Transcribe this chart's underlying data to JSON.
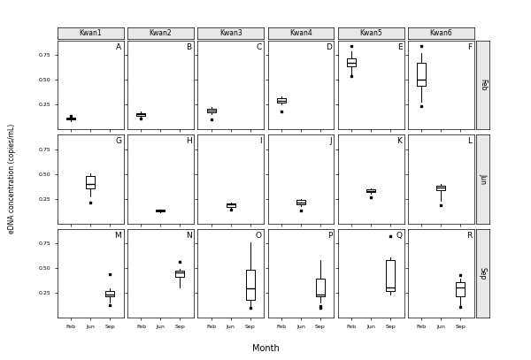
{
  "kwans": [
    "Kwan1",
    "Kwan2",
    "Kwan3",
    "Kwan4",
    "Kwan5",
    "Kwan6"
  ],
  "months": [
    "Feb",
    "Jun",
    "Sep"
  ],
  "row_months": [
    "Feb",
    "Jun",
    "Sep"
  ],
  "panel_labels": [
    [
      "A",
      "B",
      "C",
      "D",
      "E",
      "F"
    ],
    [
      "G",
      "H",
      "I",
      "J",
      "K",
      "L"
    ],
    [
      "M",
      "N",
      "O",
      "P",
      "Q",
      "R"
    ]
  ],
  "ylabel": "eDNA concentration (copies/mL)",
  "xlabel": "Month",
  "ylim": [
    0.0,
    0.9
  ],
  "yticks": [
    0.25,
    0.5,
    0.75
  ],
  "ytick_labels": [
    "0.25",
    "0.50",
    "0.75"
  ],
  "background_color": "#ffffff",
  "strip_bg": "#e8e8e8",
  "box_data": {
    "Feb": {
      "Kwan1": {
        "med": 0.105,
        "q1": 0.095,
        "q3": 0.115,
        "whislo": 0.085,
        "whishi": 0.125,
        "fliers": [
          0.135
        ]
      },
      "Kwan2": {
        "med": 0.15,
        "q1": 0.135,
        "q3": 0.16,
        "whislo": 0.118,
        "whishi": 0.175,
        "fliers": [
          0.108
        ]
      },
      "Kwan3": {
        "med": 0.185,
        "q1": 0.17,
        "q3": 0.205,
        "whislo": 0.155,
        "whishi": 0.22,
        "fliers": [
          0.098
        ]
      },
      "Kwan4": {
        "med": 0.29,
        "q1": 0.268,
        "q3": 0.315,
        "whislo": 0.255,
        "whishi": 0.33,
        "fliers": [
          0.175
        ]
      },
      "Kwan5": {
        "med": 0.67,
        "q1": 0.635,
        "q3": 0.72,
        "whislo": 0.56,
        "whishi": 0.785,
        "fliers": [
          0.84,
          0.54
        ]
      },
      "Kwan6": {
        "med": 0.505,
        "q1": 0.44,
        "q3": 0.67,
        "whislo": 0.275,
        "whishi": 0.775,
        "fliers": [
          0.84,
          0.235
        ]
      }
    },
    "Jun": {
      "Kwan1": {
        "med": 0.4,
        "q1": 0.35,
        "q3": 0.48,
        "whislo": 0.27,
        "whishi": 0.505,
        "fliers": [
          0.215
        ]
      },
      "Kwan2": {
        "med": 0.128,
        "q1": 0.12,
        "q3": 0.135,
        "whislo": 0.115,
        "whishi": 0.14,
        "fliers": [
          0.128
        ]
      },
      "Kwan3": {
        "med": 0.19,
        "q1": 0.168,
        "q3": 0.205,
        "whislo": 0.155,
        "whishi": 0.215,
        "fliers": [
          0.14
        ]
      },
      "Kwan4": {
        "med": 0.215,
        "q1": 0.195,
        "q3": 0.235,
        "whislo": 0.175,
        "whishi": 0.248,
        "fliers": [
          0.13
        ]
      },
      "Kwan5": {
        "med": 0.33,
        "q1": 0.315,
        "q3": 0.345,
        "whislo": 0.298,
        "whishi": 0.358,
        "fliers": [
          0.262
        ]
      },
      "Kwan6": {
        "med": 0.362,
        "q1": 0.335,
        "q3": 0.385,
        "whislo": 0.228,
        "whishi": 0.398,
        "fliers": [
          0.188
        ]
      }
    },
    "Sep": {
      "Kwan1": {
        "med": 0.232,
        "q1": 0.215,
        "q3": 0.272,
        "whislo": 0.155,
        "whishi": 0.295,
        "fliers": [
          0.435,
          0.128
        ]
      },
      "Kwan2": {
        "med": 0.455,
        "q1": 0.415,
        "q3": 0.475,
        "whislo": 0.302,
        "whishi": 0.496,
        "fliers": [
          0.562
        ]
      },
      "Kwan3": {
        "med": 0.298,
        "q1": 0.175,
        "q3": 0.48,
        "whislo": 0.098,
        "whishi": 0.758,
        "fliers": [
          0.098
        ]
      },
      "Kwan4": {
        "med": 0.235,
        "q1": 0.218,
        "q3": 0.39,
        "whislo": 0.155,
        "whishi": 0.578,
        "fliers": [
          0.118,
          0.098
        ]
      },
      "Kwan5": {
        "med": 0.302,
        "q1": 0.265,
        "q3": 0.585,
        "whislo": 0.235,
        "whishi": 0.605,
        "fliers": [
          0.82
        ]
      },
      "Kwan6": {
        "med": 0.302,
        "q1": 0.215,
        "q3": 0.358,
        "whislo": 0.105,
        "whishi": 0.398,
        "fliers": [
          0.432,
          0.105
        ]
      }
    }
  }
}
